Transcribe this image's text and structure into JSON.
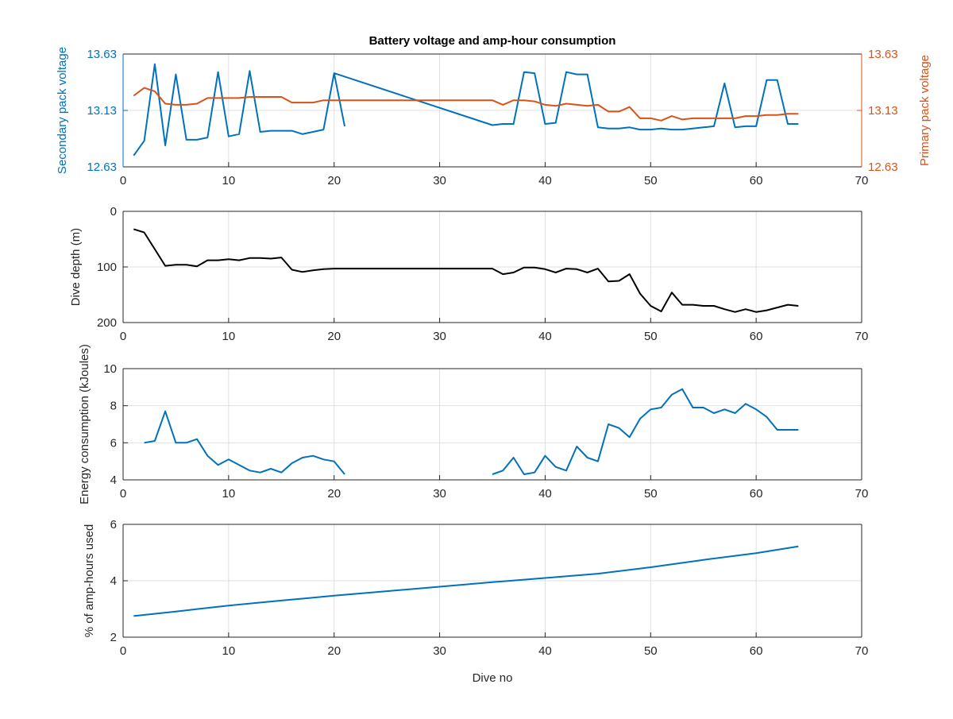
{
  "figure": {
    "title": "Battery voltage and amp-hour consumption",
    "colors": {
      "blue": "#0072BD",
      "orange": "#D95319",
      "black": "#000000",
      "grid": "#dfdfdf",
      "axis": "#262626"
    }
  },
  "chart_data": [
    {
      "type": "line",
      "title": "Battery voltage and amp-hour consumption",
      "xlabel": "",
      "ylabel": "Secondary pack voltage",
      "ylabel_right": "Primary pack voltage",
      "xlim": [
        0,
        70
      ],
      "ylim": [
        12.63,
        13.63
      ],
      "ylim_right": [
        12.63,
        13.63
      ],
      "xticks": [
        0,
        10,
        20,
        30,
        40,
        50,
        60,
        70
      ],
      "yticks": [
        "12.63",
        "13.13",
        "13.63"
      ],
      "yticks_right": [
        "12.63",
        "13.13",
        "13.63"
      ],
      "grid": true,
      "series": [
        {
          "axis": "left",
          "color": "#0072BD",
          "points": [
            [
              1,
              12.73
            ],
            [
              2,
              12.86
            ],
            [
              3,
              13.54
            ],
            [
              4,
              12.82
            ],
            [
              5,
              13.45
            ],
            [
              6,
              12.87
            ],
            [
              7,
              12.87
            ],
            [
              8,
              12.89
            ],
            [
              9,
              13.47
            ],
            [
              10,
              12.9
            ],
            [
              11,
              12.92
            ],
            [
              12,
              13.48
            ],
            [
              13,
              12.94
            ],
            [
              14,
              12.95
            ],
            [
              15,
              12.95
            ],
            [
              16,
              12.95
            ],
            [
              17,
              12.92
            ],
            [
              18,
              12.94
            ],
            [
              19,
              12.96
            ],
            [
              20,
              13.46
            ],
            [
              21,
              12.99
            ],
            null,
            [
              20,
              13.46
            ],
            [
              35,
              13.0
            ],
            [
              36,
              13.01
            ],
            [
              37,
              13.01
            ],
            [
              38,
              13.47
            ],
            [
              39,
              13.46
            ],
            [
              40,
              13.01
            ],
            [
              41,
              13.02
            ],
            [
              42,
              13.47
            ],
            [
              43,
              13.45
            ],
            [
              44,
              13.45
            ],
            [
              45,
              12.98
            ],
            [
              46,
              12.97
            ],
            [
              47,
              12.97
            ],
            [
              48,
              12.98
            ],
            [
              49,
              12.96
            ],
            [
              50,
              12.96
            ],
            [
              51,
              12.97
            ],
            [
              52,
              12.96
            ],
            [
              53,
              12.96
            ],
            [
              54,
              12.97
            ],
            [
              55,
              12.98
            ],
            [
              56,
              12.99
            ],
            [
              57,
              13.37
            ],
            [
              58,
              12.98
            ],
            [
              59,
              12.99
            ],
            [
              60,
              12.99
            ],
            [
              61,
              13.4
            ],
            [
              62,
              13.4
            ],
            [
              63,
              13.01
            ],
            [
              64,
              13.01
            ]
          ]
        },
        {
          "axis": "right",
          "color": "#D95319",
          "points": [
            [
              1,
              13.26
            ],
            [
              2,
              13.33
            ],
            [
              3,
              13.3
            ],
            [
              4,
              13.19
            ],
            [
              5,
              13.18
            ],
            [
              6,
              13.18
            ],
            [
              7,
              13.19
            ],
            [
              8,
              13.24
            ],
            [
              9,
              13.24
            ],
            [
              10,
              13.24
            ],
            [
              11,
              13.24
            ],
            [
              12,
              13.25
            ],
            [
              13,
              13.25
            ],
            [
              14,
              13.25
            ],
            [
              15,
              13.25
            ],
            [
              16,
              13.2
            ],
            [
              17,
              13.2
            ],
            [
              18,
              13.2
            ],
            [
              19,
              13.22
            ],
            [
              20,
              13.22
            ],
            [
              21,
              13.22
            ],
            [
              35,
              13.22
            ],
            [
              36,
              13.18
            ],
            [
              37,
              13.22
            ],
            [
              38,
              13.22
            ],
            [
              39,
              13.21
            ],
            [
              40,
              13.18
            ],
            [
              41,
              13.17
            ],
            [
              42,
              13.19
            ],
            [
              43,
              13.18
            ],
            [
              44,
              13.17
            ],
            [
              45,
              13.18
            ],
            [
              46,
              13.12
            ],
            [
              47,
              13.12
            ],
            [
              48,
              13.16
            ],
            [
              49,
              13.06
            ],
            [
              50,
              13.06
            ],
            [
              51,
              13.04
            ],
            [
              52,
              13.08
            ],
            [
              53,
              13.05
            ],
            [
              54,
              13.06
            ],
            [
              55,
              13.06
            ],
            [
              56,
              13.06
            ],
            [
              57,
              13.06
            ],
            [
              58,
              13.06
            ],
            [
              59,
              13.08
            ],
            [
              60,
              13.08
            ],
            [
              61,
              13.09
            ],
            [
              62,
              13.09
            ],
            [
              63,
              13.1
            ],
            [
              64,
              13.1
            ]
          ]
        }
      ]
    },
    {
      "type": "line",
      "xlabel": "",
      "ylabel": "Dive depth (m)",
      "xlim": [
        0,
        70
      ],
      "ylim": [
        0,
        200
      ],
      "y_reversed": true,
      "xticks": [
        0,
        10,
        20,
        30,
        40,
        50,
        60,
        70
      ],
      "yticks": [
        "0",
        "100",
        "200"
      ],
      "grid": true,
      "series": [
        {
          "color": "#000000",
          "points": [
            [
              1,
              32
            ],
            [
              2,
              38
            ],
            [
              3,
              68
            ],
            [
              4,
              98
            ],
            [
              5,
              96
            ],
            [
              6,
              96
            ],
            [
              7,
              99
            ],
            [
              8,
              88
            ],
            [
              9,
              88
            ],
            [
              10,
              86
            ],
            [
              11,
              88
            ],
            [
              12,
              84
            ],
            [
              13,
              84
            ],
            [
              14,
              85
            ],
            [
              15,
              83
            ],
            [
              16,
              105
            ],
            [
              17,
              109
            ],
            [
              18,
              106
            ],
            [
              19,
              104
            ],
            [
              20,
              103
            ],
            [
              21,
              103
            ],
            [
              35,
              103
            ],
            [
              36,
              113
            ],
            [
              37,
              110
            ],
            [
              38,
              101
            ],
            [
              39,
              101
            ],
            [
              40,
              104
            ],
            [
              41,
              110
            ],
            [
              42,
              103
            ],
            [
              43,
              104
            ],
            [
              44,
              110
            ],
            [
              45,
              103
            ],
            [
              46,
              126
            ],
            [
              47,
              125
            ],
            [
              48,
              113
            ],
            [
              49,
              148
            ],
            [
              50,
              170
            ],
            [
              51,
              180
            ],
            [
              52,
              146
            ],
            [
              53,
              168
            ],
            [
              54,
              168
            ],
            [
              55,
              170
            ],
            [
              56,
              170
            ],
            [
              57,
              176
            ],
            [
              58,
              181
            ],
            [
              59,
              176
            ],
            [
              60,
              181
            ],
            [
              61,
              178
            ],
            [
              62,
              173
            ],
            [
              63,
              168
            ],
            [
              64,
              170
            ]
          ]
        }
      ]
    },
    {
      "type": "line",
      "xlabel": "",
      "ylabel": "Energy consumption (kJoules)",
      "xlim": [
        0,
        70
      ],
      "ylim": [
        4,
        10
      ],
      "xticks": [
        0,
        10,
        20,
        30,
        40,
        50,
        60,
        70
      ],
      "yticks": [
        "4",
        "6",
        "8",
        "10"
      ],
      "grid": true,
      "series": [
        {
          "color": "#0072BD",
          "points": [
            [
              2,
              6.0
            ],
            [
              3,
              6.1
            ],
            [
              4,
              7.7
            ],
            [
              5,
              6.0
            ],
            [
              6,
              6.0
            ],
            [
              7,
              6.2
            ],
            [
              8,
              5.3
            ],
            [
              9,
              4.8
            ],
            [
              10,
              5.1
            ],
            [
              11,
              4.8
            ],
            [
              12,
              4.5
            ],
            [
              13,
              4.4
            ],
            [
              14,
              4.6
            ],
            [
              15,
              4.4
            ],
            [
              16,
              4.9
            ],
            [
              17,
              5.2
            ],
            [
              18,
              5.3
            ],
            [
              19,
              5.1
            ],
            [
              20,
              5.0
            ],
            [
              21,
              4.3
            ],
            null,
            [
              35,
              4.3
            ],
            [
              36,
              4.5
            ],
            [
              37,
              5.2
            ],
            [
              38,
              4.3
            ],
            [
              39,
              4.4
            ],
            [
              40,
              5.3
            ],
            [
              41,
              4.7
            ],
            [
              42,
              4.5
            ],
            [
              43,
              5.8
            ],
            [
              44,
              5.2
            ],
            [
              45,
              5.0
            ],
            [
              46,
              7.0
            ],
            [
              47,
              6.8
            ],
            [
              48,
              6.3
            ],
            [
              49,
              7.3
            ],
            [
              50,
              7.8
            ],
            [
              51,
              7.9
            ],
            [
              52,
              8.6
            ],
            [
              53,
              8.9
            ],
            [
              54,
              7.9
            ],
            [
              55,
              7.9
            ],
            [
              56,
              7.6
            ],
            [
              57,
              7.8
            ],
            [
              58,
              7.6
            ],
            [
              59,
              8.1
            ],
            [
              60,
              7.8
            ],
            [
              61,
              7.4
            ],
            [
              62,
              6.7
            ],
            [
              63,
              6.7
            ],
            [
              64,
              6.7
            ]
          ]
        }
      ]
    },
    {
      "type": "line",
      "xlabel": "Dive no",
      "ylabel": "% of amp-hours used",
      "xlim": [
        0,
        70
      ],
      "ylim": [
        2,
        6
      ],
      "xticks": [
        0,
        10,
        20,
        30,
        40,
        50,
        60,
        70
      ],
      "yticks": [
        "2",
        "4",
        "6"
      ],
      "grid": true,
      "series": [
        {
          "color": "#0072BD",
          "points": [
            [
              1,
              2.75
            ],
            [
              5,
              2.91
            ],
            [
              10,
              3.12
            ],
            [
              15,
              3.3
            ],
            [
              20,
              3.47
            ],
            [
              25,
              3.63
            ],
            [
              30,
              3.79
            ],
            [
              35,
              3.95
            ],
            [
              40,
              4.1
            ],
            [
              45,
              4.25
            ],
            [
              50,
              4.48
            ],
            [
              55,
              4.74
            ],
            [
              60,
              4.98
            ],
            [
              64,
              5.22
            ]
          ]
        }
      ]
    }
  ]
}
